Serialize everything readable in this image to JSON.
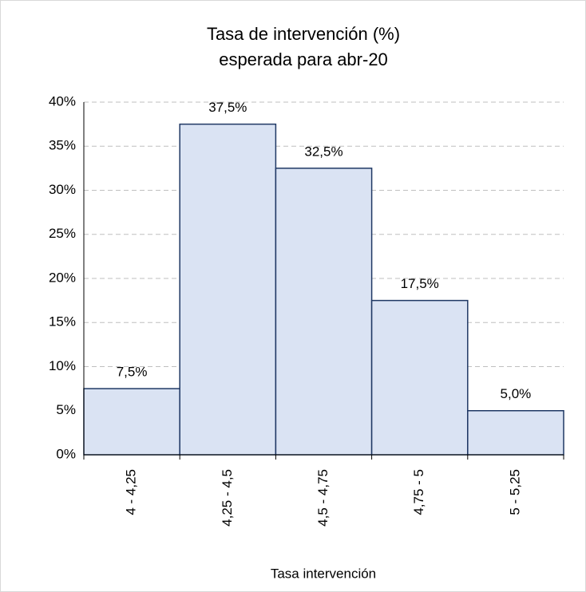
{
  "chart_data": {
    "type": "bar",
    "title": "Tasa de intervención  (%)",
    "subtitle": "esperada para abr-20",
    "x_label": "Tasa intervención",
    "categories": [
      "4 - 4,25",
      "4,25 - 4,5",
      "4,5 - 4,75",
      "4,75 - 5",
      "5 - 5,25"
    ],
    "values": [
      7.5,
      37.5,
      32.5,
      17.5,
      5.0
    ],
    "value_labels": [
      "7,5%",
      "37,5%",
      "32,5%",
      "17,5%",
      "5,0%"
    ],
    "color": "#dae3f3",
    "edge_color": "#1f3864",
    "ylim": [
      0,
      40
    ],
    "yticks": [
      {
        "value": 0,
        "label": "0%"
      },
      {
        "value": 5,
        "label": "5%"
      },
      {
        "value": 10,
        "label": "10%"
      },
      {
        "value": 15,
        "label": "15%"
      },
      {
        "value": 20,
        "label": "20%"
      },
      {
        "value": 25,
        "label": "25%"
      },
      {
        "value": 30,
        "label": "30%"
      },
      {
        "value": 35,
        "label": "35%"
      },
      {
        "value": 40,
        "label": "40%"
      }
    ],
    "grid": true
  }
}
